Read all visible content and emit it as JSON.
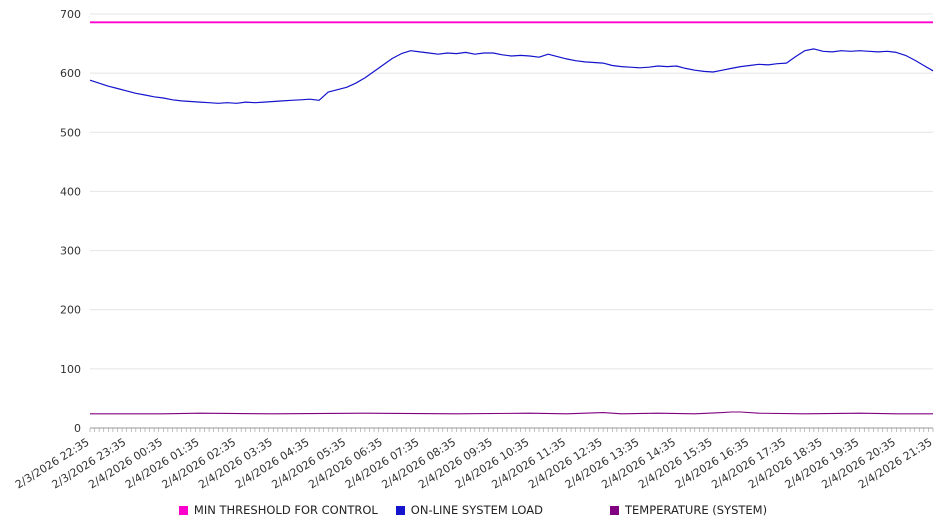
{
  "chart_data": {
    "type": "line",
    "title": "",
    "xlabel": "",
    "ylabel": "",
    "ylim": [
      0,
      700
    ],
    "y_ticks": [
      0,
      100,
      200,
      300,
      400,
      500,
      600,
      700
    ],
    "grid": "horizontal",
    "legend_position": "bottom",
    "x_index_range": [
      0,
      92
    ],
    "x_label_step": 4,
    "x_tick_labels": [
      "2/3/2026 22:35",
      "2/3/2026 23:35",
      "2/4/2026 00:35",
      "2/4/2026 01:35",
      "2/4/2026 02:35",
      "2/4/2026 03:35",
      "2/4/2026 04:35",
      "2/4/2026 05:35",
      "2/4/2026 06:35",
      "2/4/2026 07:35",
      "2/4/2026 08:35",
      "2/4/2026 09:35",
      "2/4/2026 10:35",
      "2/4/2026 11:35",
      "2/4/2026 12:35",
      "2/4/2026 13:35",
      "2/4/2026 14:35",
      "2/4/2026 15:35",
      "2/4/2026 16:35",
      "2/4/2026 17:35",
      "2/4/2026 18:35",
      "2/4/2026 19:35",
      "2/4/2026 20:35",
      "2/4/2026 21:35"
    ],
    "series": [
      {
        "id": "min-threshold",
        "name": "MIN THRESHOLD FOR CONTROL",
        "color": "#ff00cc",
        "width": 1.8,
        "points": [
          [
            0,
            686
          ],
          [
            92,
            686
          ]
        ]
      },
      {
        "id": "system-load",
        "name": "ON-LINE SYSTEM LOAD",
        "color": "#1414cd",
        "width": 1.2,
        "values": [
          588,
          583,
          578,
          574,
          570,
          566,
          563,
          560,
          558,
          555,
          553,
          552,
          551,
          550,
          549,
          550,
          549,
          551,
          550,
          551,
          552,
          553,
          554,
          555,
          556,
          554,
          568,
          572,
          576,
          583,
          592,
          603,
          614,
          625,
          633,
          638,
          636,
          634,
          632,
          634,
          633,
          635,
          632,
          634,
          634,
          631,
          629,
          630,
          629,
          627,
          632,
          628,
          624,
          621,
          619,
          618,
          617,
          613,
          611,
          610,
          609,
          610,
          612,
          611,
          612,
          608,
          605,
          603,
          602,
          605,
          608,
          611,
          613,
          615,
          614,
          616,
          617,
          628,
          638,
          641,
          637,
          636,
          638,
          637,
          638,
          637,
          636,
          637,
          635,
          630,
          622,
          613,
          604
        ]
      },
      {
        "id": "temperature",
        "name": "TEMPERATURE (SYSTEM)",
        "color": "#800080",
        "width": 1.1,
        "points": [
          [
            0,
            24
          ],
          [
            8,
            24
          ],
          [
            12,
            25
          ],
          [
            20,
            24
          ],
          [
            30,
            25
          ],
          [
            40,
            24
          ],
          [
            48,
            25
          ],
          [
            52,
            24
          ],
          [
            56,
            26
          ],
          [
            58,
            24
          ],
          [
            62,
            25
          ],
          [
            66,
            24
          ],
          [
            69,
            26
          ],
          [
            70,
            27
          ],
          [
            71,
            27
          ],
          [
            73,
            25
          ],
          [
            78,
            24
          ],
          [
            84,
            25
          ],
          [
            88,
            24
          ],
          [
            92,
            24
          ]
        ]
      }
    ]
  }
}
